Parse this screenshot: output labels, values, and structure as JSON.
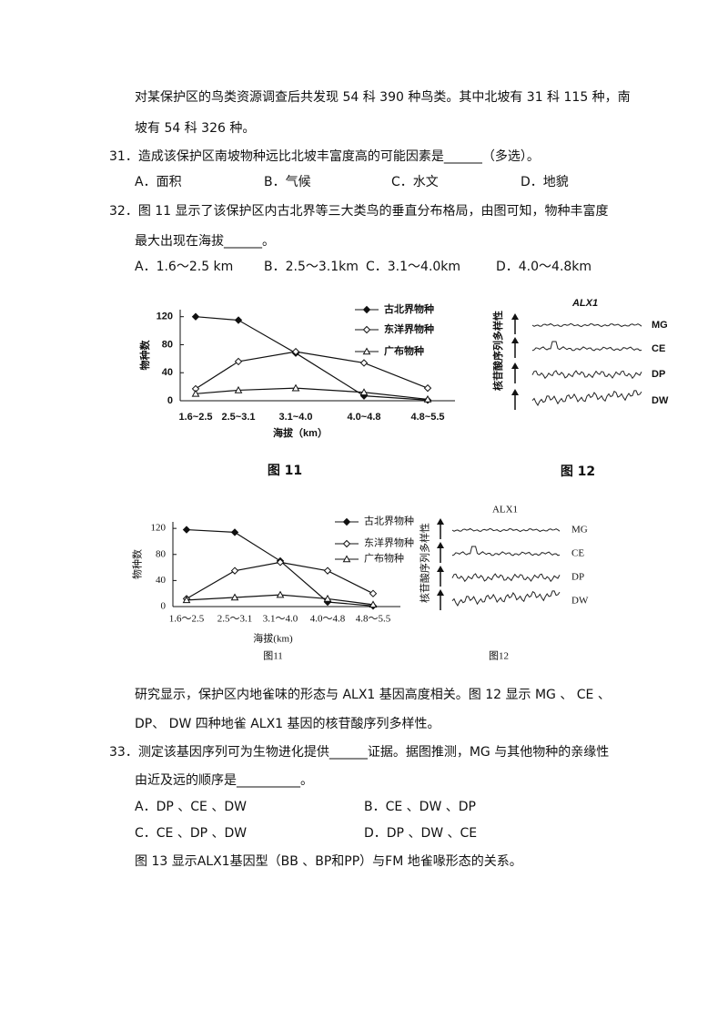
{
  "intro": [
    "对某保护区的鸟类资源调查后共发现 54 科 390 种鸟类。其中北坡有 31 科 115 种，南",
    "坡有 54 科 326 种。"
  ],
  "q31": {
    "stem": [
      "31．造成该保护区南坡物种远比北坡丰富度高的可能因素是______（多选）。"
    ],
    "options": [
      "A．面积",
      "B．气候",
      "C．水文",
      "D．地貌"
    ]
  },
  "q32": {
    "stem": [
      "32．图 11 显示了该保护区内古北界等三大类鸟的垂直分布格局，由图可知，物种丰富度",
      "最大出现在海拔______。"
    ],
    "options": [
      "A．1.6～2.5 km",
      "B．2.5～3.1km",
      "C．3.1～4.0km",
      "D．4.0～4.8km"
    ]
  },
  "figure11a": {
    "type": "line",
    "categories": [
      "1.6~2.5",
      "2.5~3.1",
      "3.1~4.0",
      "4.0~4.8",
      "4.8~5.5"
    ],
    "series": [
      {
        "name": "古北界物种",
        "color": "#111",
        "marker": "diamond-filled",
        "values": [
          120,
          115,
          68,
          7,
          1
        ]
      },
      {
        "name": "东洋界物种",
        "color": "#111",
        "marker": "diamond-open",
        "values": [
          17,
          56,
          70,
          54,
          18
        ]
      },
      {
        "name": "广布物种",
        "color": "#111",
        "marker": "triangle-open",
        "values": [
          10,
          15,
          18,
          12,
          2
        ]
      }
    ],
    "ylim": [
      0,
      130
    ],
    "yticks": [
      0,
      40,
      80,
      120
    ],
    "ylabel": "物种数",
    "xlabel": "海拔（km）",
    "caption": "图 11"
  },
  "figure12a": {
    "title": "ALX1",
    "ylabel": "核苷酸序列多样性",
    "labels": [
      "MG",
      "CE",
      "DP",
      "DW"
    ],
    "caption": "图 12"
  },
  "figure11b": {
    "type": "line",
    "categories": [
      "1.6～2.5",
      "2.5～3.1",
      "3.1～4.0",
      "4.0～4.8",
      "4.8～5.5"
    ],
    "series": [
      {
        "name": "古北界物种",
        "color": "#111",
        "marker": "diamond-filled",
        "values": [
          118,
          114,
          70,
          7,
          1
        ]
      },
      {
        "name": "东洋界物种",
        "color": "#111",
        "marker": "diamond-open",
        "values": [
          12,
          55,
          68,
          55,
          20
        ]
      },
      {
        "name": "广布物种",
        "color": "#111",
        "marker": "triangle-open",
        "values": [
          10,
          14,
          18,
          12,
          3
        ]
      }
    ],
    "ylim": [
      0,
      130
    ],
    "yticks": [
      0,
      40,
      80,
      120
    ],
    "ylabel": "物种数",
    "xlabel": "海拔(km)",
    "caption": "图11"
  },
  "figure12b": {
    "title": "ALX1",
    "ylabel": "核苷酸序列多样性",
    "labels": [
      "MG",
      "CE",
      "DP",
      "DW"
    ],
    "caption": "图12"
  },
  "para": [
    "研究显示，保护区内地雀味的形态与 ALX1 基因高度相关。图 12 显示 MG 、 CE 、",
    "DP、 DW 四种地雀 ALX1 基因的核苷酸序列多样性。"
  ],
  "q33": {
    "stem": [
      "33．测定该基因序列可为生物进化提供______证据。据图推测，MG 与其他物种的亲缘性",
      "由近及远的顺序是__________。"
    ],
    "options": [
      "A．DP 、CE 、DW",
      "B．CE 、DW 、DP",
      "C．CE 、DP 、DW",
      "D．DP 、DW 、CE"
    ]
  },
  "closing": "图 13 显示ALX1基因型（BB 、BP和PP）与FM 地雀喙形态的关系。"
}
